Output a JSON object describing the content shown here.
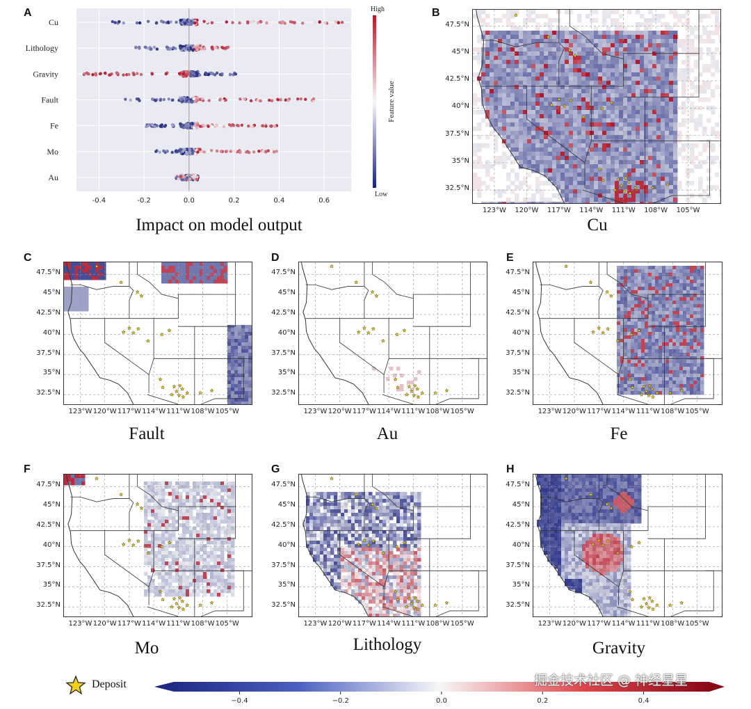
{
  "panel_letters": [
    "A",
    "B",
    "C",
    "D",
    "E",
    "F",
    "G",
    "H"
  ],
  "colors": {
    "high": "#b2182b",
    "mid": "#f7f7f7",
    "low": "#1a237e",
    "deposit_star": "#f2cf1d"
  },
  "chart_data": [
    {
      "type": "scatter",
      "panel": "A",
      "subtype": "shap-beeswarm",
      "features": [
        "Cu",
        "Lithology",
        "Gravity",
        "Fault",
        "Fe",
        "Mo",
        "Au"
      ],
      "xlabel": "Impact on model output",
      "xlim": [
        -0.5,
        0.72
      ],
      "xticks": [
        "-0.4",
        "-0.2",
        "0.0",
        "0.2",
        "0.4",
        "0.6"
      ],
      "xtick_values": [
        -0.4,
        -0.2,
        0.0,
        0.2,
        0.4,
        0.6
      ],
      "colorbar": {
        "label": "Feature value",
        "high": "High",
        "low": "Low"
      },
      "ranges": [
        {
          "feature": "Cu",
          "min": -0.34,
          "max": 0.7
        },
        {
          "feature": "Lithology",
          "min": -0.25,
          "max": 0.18
        },
        {
          "feature": "Gravity",
          "min": -0.47,
          "max": 0.21
        },
        {
          "feature": "Fault",
          "min": -0.3,
          "max": 0.56
        },
        {
          "feature": "Fe",
          "min": -0.19,
          "max": 0.4
        },
        {
          "feature": "Mo",
          "min": -0.17,
          "max": 0.41
        },
        {
          "feature": "Au",
          "min": -0.06,
          "max": 0.04
        }
      ],
      "grid": true
    },
    {
      "type": "heatmap",
      "panels": [
        {
          "panel": "B",
          "caption": "Cu"
        },
        {
          "panel": "C",
          "caption": "Fault"
        },
        {
          "panel": "D",
          "caption": "Au"
        },
        {
          "panel": "E",
          "caption": "Fe"
        },
        {
          "panel": "F",
          "caption": "Mo"
        },
        {
          "panel": "G",
          "caption": "Lithology"
        },
        {
          "panel": "H",
          "caption": "Gravity"
        }
      ],
      "lat_ticks": [
        "47.5°N",
        "45°N",
        "42.5°N",
        "40°N",
        "37.5°N",
        "35°N",
        "32.5°N"
      ],
      "lat_values": [
        47.5,
        45,
        42.5,
        40,
        37.5,
        35,
        32.5
      ],
      "lon_ticks": [
        "123°W",
        "120°W",
        "117°W",
        "114°W",
        "111°W",
        "108°W",
        "105°W"
      ],
      "lon_values": [
        -123,
        -120,
        -117,
        -114,
        -111,
        -108,
        -105
      ],
      "lat_range": [
        31.3,
        49.0
      ],
      "lon_range": [
        -125.0,
        -102.0
      ]
    },
    {
      "type": "colorbar",
      "ticks": [
        "−0.4",
        "−0.2",
        "0.0",
        "0.2",
        "0.4"
      ],
      "tick_values": [
        -0.4,
        -0.2,
        0.0,
        0.2,
        0.4
      ],
      "range": [
        -0.53,
        0.53
      ]
    }
  ],
  "legend": {
    "deposit_label": "Deposit"
  },
  "watermark": "掘金技术社区 @ 神经星星"
}
